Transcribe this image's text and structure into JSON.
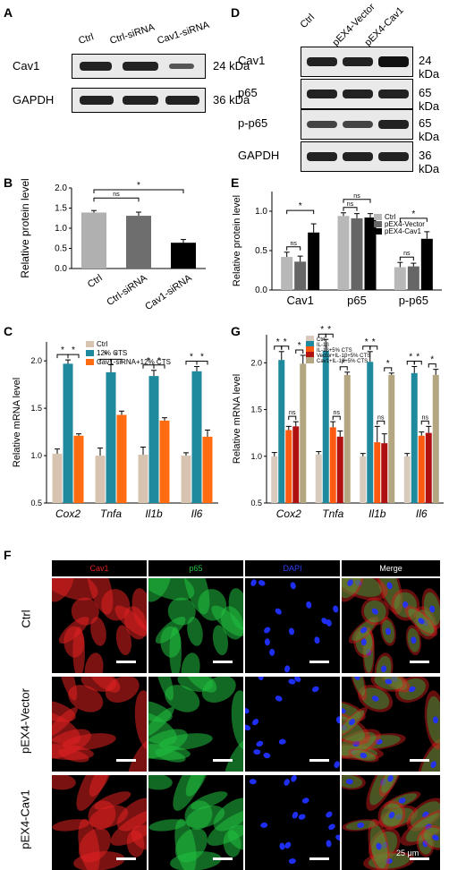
{
  "panels": {
    "A": {
      "label": "A",
      "lanes": [
        "Ctrl",
        "Ctrl-siRNA",
        "Cav1-siRNA"
      ],
      "rows": [
        {
          "name": "Cav1",
          "kda": "24 kDa"
        },
        {
          "name": "GAPDH",
          "kda": "36 kDa"
        }
      ]
    },
    "D": {
      "label": "D",
      "lanes": [
        "Ctrl",
        "pEX4-Vector",
        "pEX4-Cav1"
      ],
      "rows": [
        {
          "name": "Cav1",
          "kda": "24 kDa"
        },
        {
          "name": "p65",
          "kda": "65 kDa"
        },
        {
          "name": "p-p65",
          "kda": "65 kDa"
        },
        {
          "name": "GAPDH",
          "kda": "36 kDa"
        }
      ]
    },
    "F": {
      "label": "F",
      "columns": [
        "Cav1",
        "p65",
        "DAPI",
        "Merge"
      ],
      "rows": [
        "Ctrl",
        "pEX4-Vector",
        "pEX4-Cav1"
      ],
      "scale": "25 μm",
      "colors": {
        "Cav1": "#e02020",
        "p65": "#20c040",
        "DAPI": "#2030ff"
      }
    }
  },
  "chart_data": [
    {
      "panel": "B",
      "type": "bar",
      "categories": [
        "Ctrl",
        "Ctrl-siRNA",
        "Cav1-siRNA"
      ],
      "values": [
        1.39,
        1.31,
        0.64
      ],
      "errors": [
        0.05,
        0.09,
        0.08
      ],
      "colors": [
        "#b0b0b0",
        "#6e6e6e",
        "#000000"
      ],
      "ylabel": "Relative protein level",
      "ylim": [
        0,
        2.0
      ],
      "yticks": [
        "0.0",
        "0.5",
        "1.0",
        "1.5",
        "2.0"
      ],
      "annotations": [
        {
          "from": 0,
          "to": 1,
          "text": "ns"
        },
        {
          "from": 0,
          "to": 2,
          "text": "*"
        }
      ]
    },
    {
      "panel": "E",
      "type": "bar",
      "categories": [
        "Cav1",
        "p65",
        "p-p65"
      ],
      "series": [
        {
          "name": "Ctrl",
          "color": "#b8b8b8",
          "values": [
            0.42,
            0.94,
            0.29
          ],
          "errors": [
            0.06,
            0.04,
            0.06
          ]
        },
        {
          "name": "pEX4-Vector",
          "color": "#666666",
          "values": [
            0.36,
            0.91,
            0.3
          ],
          "errors": [
            0.07,
            0.06,
            0.04
          ]
        },
        {
          "name": "pEX4-Cav1",
          "color": "#000000",
          "values": [
            0.73,
            0.92,
            0.65
          ],
          "errors": [
            0.11,
            0.05,
            0.09
          ]
        }
      ],
      "ylabel": "Relative protein level",
      "ylim": [
        0,
        1.25
      ],
      "yticks": [
        "0.0",
        "0.5",
        "1.0"
      ],
      "annotations": [
        {
          "cat": 0,
          "from": 0,
          "to": 1,
          "text": "ns"
        },
        {
          "cat": 0,
          "from": 0,
          "to": 2,
          "text": "*"
        },
        {
          "cat": 1,
          "from": 0,
          "to": 1,
          "text": "ns"
        },
        {
          "cat": 1,
          "from": 0,
          "to": 2,
          "text": "ns"
        },
        {
          "cat": 2,
          "from": 0,
          "to": 1,
          "text": "ns"
        },
        {
          "cat": 2,
          "from": 0,
          "to": 2,
          "text": "*"
        }
      ]
    },
    {
      "panel": "C",
      "type": "bar",
      "categories": [
        "Cox2",
        "Tnfa",
        "Il1b",
        "Il6"
      ],
      "series": [
        {
          "name": "Ctrl",
          "color": "#d7c4b0",
          "values": [
            1.02,
            1.0,
            1.01,
            1.0
          ],
          "errors": [
            0.05,
            0.08,
            0.08,
            0.03
          ]
        },
        {
          "name": "12% CTS",
          "color": "#1f8a9e",
          "values": [
            1.97,
            1.88,
            1.84,
            1.89
          ],
          "errors": [
            0.04,
            0.08,
            0.06,
            0.05
          ]
        },
        {
          "name": "Cav1-siRNA+12% CTS",
          "color": "#ff6b10",
          "values": [
            1.21,
            1.43,
            1.37,
            1.2
          ],
          "errors": [
            0.02,
            0.04,
            0.03,
            0.07
          ]
        }
      ],
      "ylabel": "Relative mRNA level",
      "ylim": [
        0.5,
        2.2
      ],
      "yticks": [
        "0.5",
        "1.0",
        "1.5",
        "2.0"
      ],
      "annotations": [
        {
          "cat": 0,
          "from": 0,
          "to": 1,
          "text": "*"
        },
        {
          "cat": 0,
          "from": 1,
          "to": 2,
          "text": "*"
        },
        {
          "cat": 1,
          "from": 0,
          "to": 1,
          "text": "*"
        },
        {
          "cat": 1,
          "from": 1,
          "to": 2,
          "text": "*"
        },
        {
          "cat": 2,
          "from": 0,
          "to": 1,
          "text": "*"
        },
        {
          "cat": 2,
          "from": 1,
          "to": 2,
          "text": "*"
        },
        {
          "cat": 3,
          "from": 0,
          "to": 1,
          "text": "*"
        },
        {
          "cat": 3,
          "from": 1,
          "to": 2,
          "text": "*"
        }
      ]
    },
    {
      "panel": "G",
      "type": "bar",
      "categories": [
        "Cox2",
        "Tnfa",
        "Il1b",
        "Il6"
      ],
      "series": [
        {
          "name": "Ctrl",
          "color": "#d8cbbd",
          "values": [
            1.0,
            1.02,
            1.0,
            1.0
          ],
          "errors": [
            0.04,
            0.03,
            0.03,
            0.03
          ]
        },
        {
          "name": "IL-1β",
          "color": "#1f8a9e",
          "values": [
            2.03,
            2.13,
            2.01,
            1.89
          ],
          "errors": [
            0.09,
            0.12,
            0.11,
            0.07
          ]
        },
        {
          "name": "IL-1β+5% CTS",
          "color": "#ff5a10",
          "values": [
            1.28,
            1.31,
            1.15,
            1.22
          ],
          "errors": [
            0.04,
            0.06,
            0.17,
            0.04
          ]
        },
        {
          "name": "Vector+IL-1β+5% CTS",
          "color": "#b01010",
          "values": [
            1.32,
            1.21,
            1.14,
            1.25
          ],
          "errors": [
            0.05,
            0.06,
            0.1,
            0.07
          ]
        },
        {
          "name": "Cav1+IL-1β+5% CTS",
          "color": "#b3a680",
          "values": [
            1.99,
            1.87,
            1.87,
            1.87
          ],
          "errors": [
            0.09,
            0.03,
            0.02,
            0.06
          ]
        }
      ],
      "ylabel": "Relative mRNA level",
      "ylim": [
        0.5,
        2.3
      ],
      "yticks": [
        "0.5",
        "1.0",
        "1.5",
        "2.0"
      ],
      "annotations": [
        {
          "cat": 0,
          "from": 0,
          "to": 1,
          "text": "*"
        },
        {
          "cat": 0,
          "from": 1,
          "to": 2,
          "text": "*"
        },
        {
          "cat": 0,
          "from": 2,
          "to": 3,
          "text": "ns"
        },
        {
          "cat": 0,
          "from": 3,
          "to": 4,
          "text": "*"
        },
        {
          "cat": 1,
          "from": 0,
          "to": 1,
          "text": "*"
        },
        {
          "cat": 1,
          "from": 1,
          "to": 2,
          "text": "*"
        },
        {
          "cat": 1,
          "from": 2,
          "to": 3,
          "text": "ns"
        },
        {
          "cat": 1,
          "from": 3,
          "to": 4,
          "text": "*"
        },
        {
          "cat": 2,
          "from": 0,
          "to": 1,
          "text": "*"
        },
        {
          "cat": 2,
          "from": 1,
          "to": 2,
          "text": "*"
        },
        {
          "cat": 2,
          "from": 2,
          "to": 3,
          "text": "ns"
        },
        {
          "cat": 2,
          "from": 3,
          "to": 4,
          "text": "*"
        },
        {
          "cat": 3,
          "from": 0,
          "to": 1,
          "text": "*"
        },
        {
          "cat": 3,
          "from": 1,
          "to": 2,
          "text": "*"
        },
        {
          "cat": 3,
          "from": 2,
          "to": 3,
          "text": "ns"
        },
        {
          "cat": 3,
          "from": 3,
          "to": 4,
          "text": "*"
        }
      ]
    }
  ]
}
